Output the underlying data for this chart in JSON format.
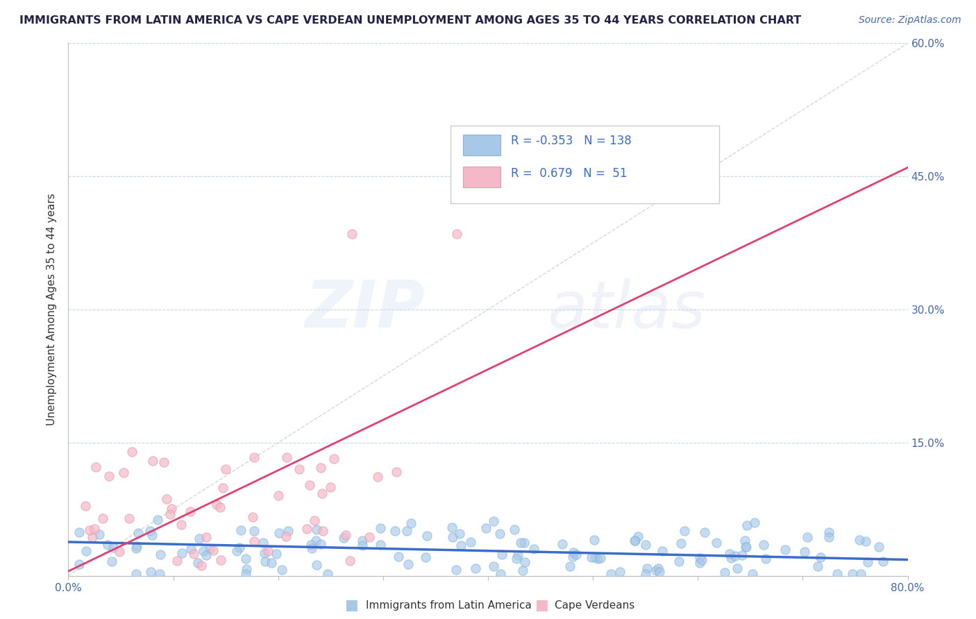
{
  "title": "IMMIGRANTS FROM LATIN AMERICA VS CAPE VERDEAN UNEMPLOYMENT AMONG AGES 35 TO 44 YEARS CORRELATION CHART",
  "source_text": "Source: ZipAtlas.com",
  "ylabel": "Unemployment Among Ages 35 to 44 years",
  "xlim": [
    0.0,
    0.8
  ],
  "ylim": [
    0.0,
    0.6
  ],
  "ytick_positions": [
    0.0,
    0.15,
    0.3,
    0.45,
    0.6
  ],
  "ytick_labels_right": [
    "",
    "15.0%",
    "30.0%",
    "45.0%",
    "60.0%"
  ],
  "xtick_positions": [
    0.0,
    0.1,
    0.2,
    0.3,
    0.4,
    0.5,
    0.6,
    0.7,
    0.8
  ],
  "xtick_labels": [
    "0.0%",
    "",
    "",
    "",
    "",
    "",
    "",
    "",
    "80.0%"
  ],
  "blue_fill_color": "#a8c8e8",
  "blue_edge_color": "#7fb3e0",
  "pink_fill_color": "#f4b8c8",
  "pink_edge_color": "#e898b0",
  "blue_line_color": "#3a6cc8",
  "pink_line_color": "#e04070",
  "R_blue": -0.353,
  "N_blue": 138,
  "R_pink": 0.679,
  "N_pink": 51,
  "legend_label_blue": "Immigrants from Latin America",
  "legend_label_pink": "Cape Verdeans",
  "watermark_zip": "ZIP",
  "watermark_atlas": "atlas",
  "title_color": "#222244",
  "axis_label_color": "#4466aa",
  "background_color": "#ffffff",
  "diag_line_color": "#cccccc",
  "grid_color": "#c0d4ea",
  "blue_trend_x0": 0.0,
  "blue_trend_x1": 0.8,
  "blue_trend_y0": 0.038,
  "blue_trend_y1": 0.018,
  "pink_trend_x0": 0.0,
  "pink_trend_x1": 0.8,
  "pink_trend_y0": 0.005,
  "pink_trend_y1": 0.46
}
